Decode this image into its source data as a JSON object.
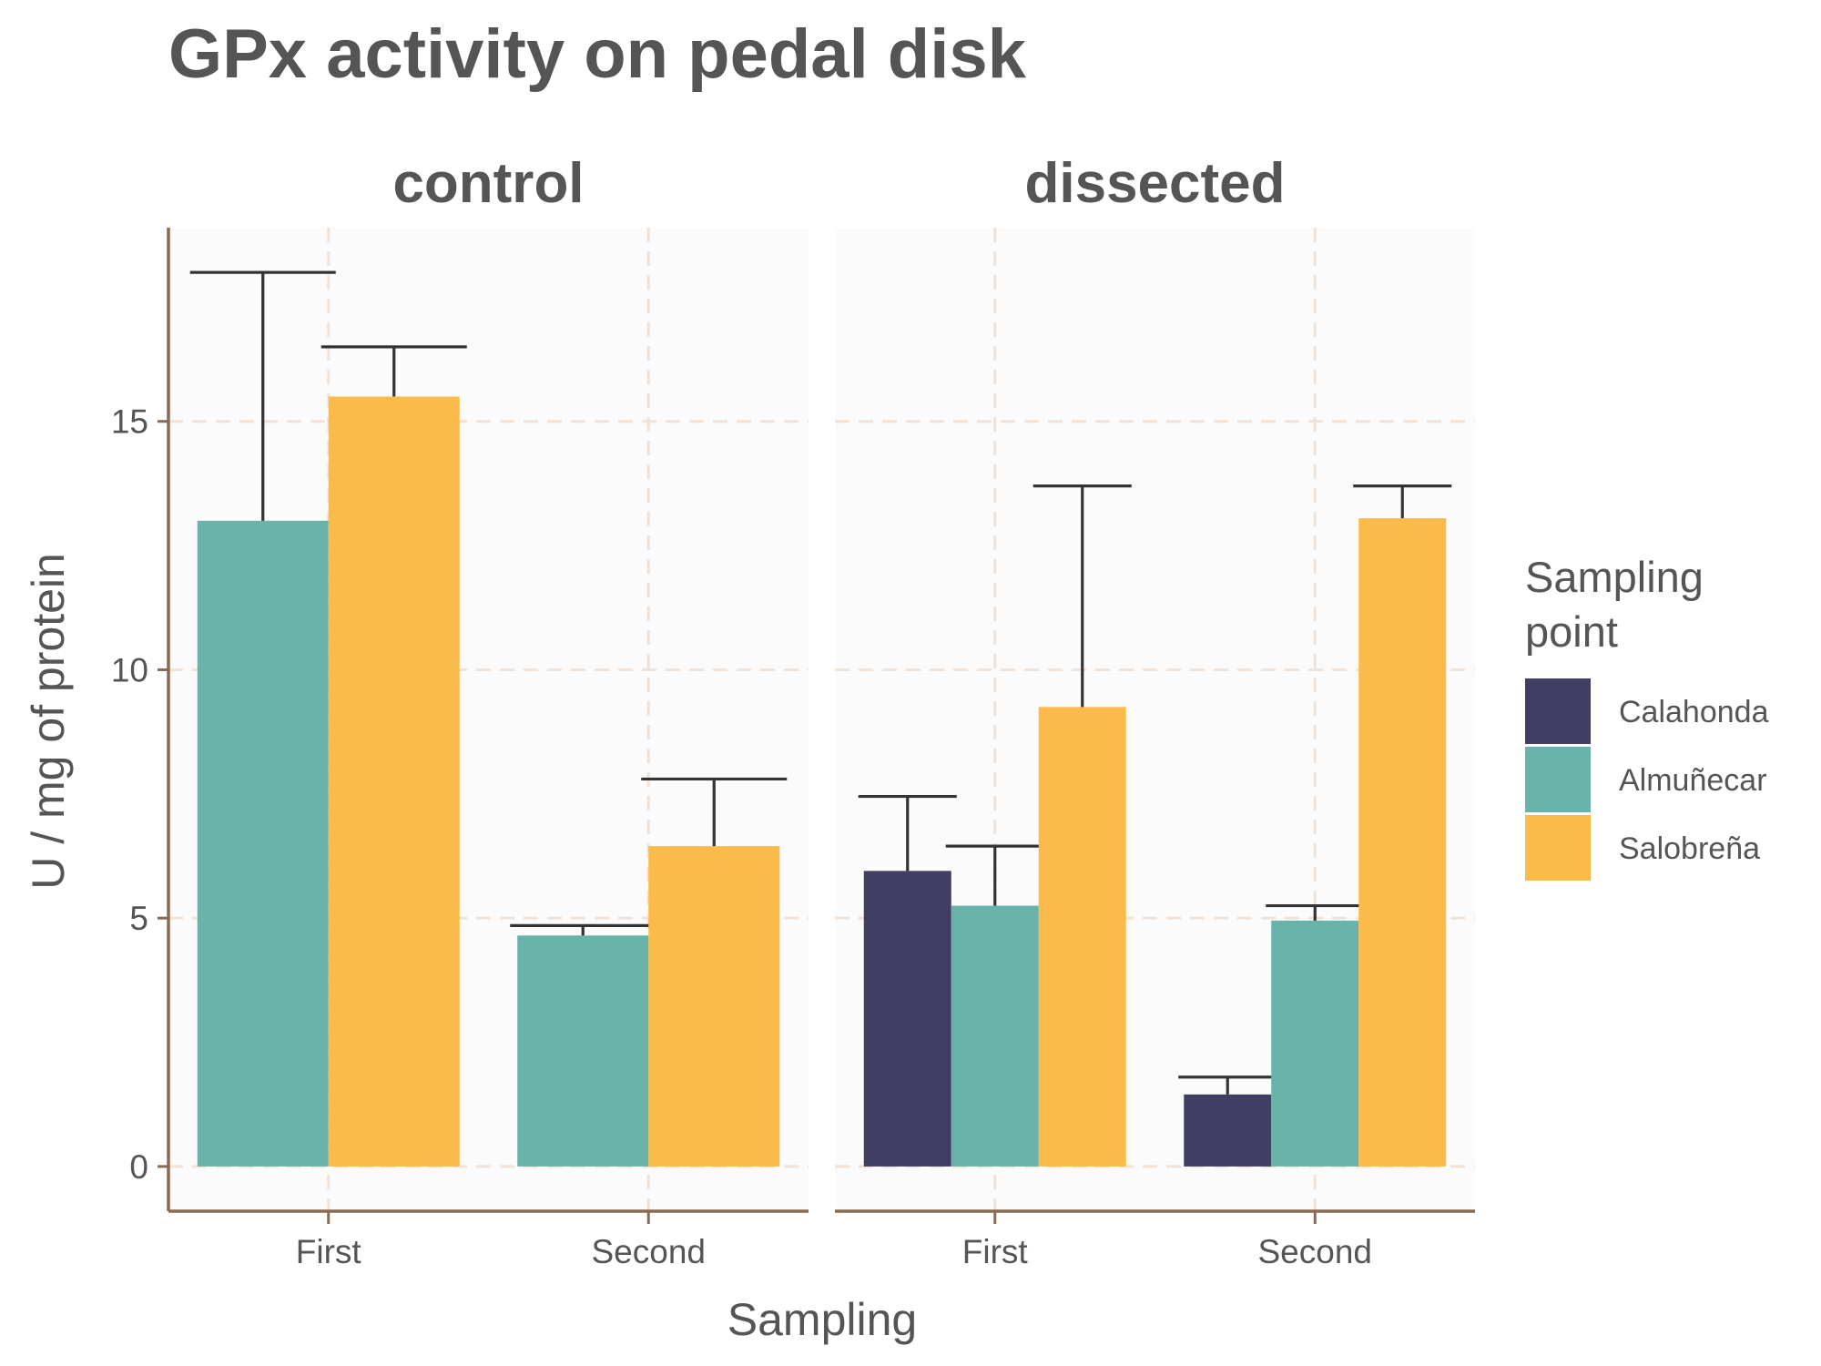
{
  "chart_data": {
    "type": "bar",
    "title": "GPx activity on pedal disk",
    "xlabel": "Sampling",
    "ylabel": "U / mg  of protein",
    "ylim": [
      -0.9,
      18.9
    ],
    "yticks": [
      0,
      5,
      10,
      15
    ],
    "grid": true,
    "legend": {
      "title_lines": [
        "Sampling",
        "point"
      ],
      "placement": "right"
    },
    "categories": [
      "First",
      "Second"
    ],
    "series_colors": {
      "Calahonda": "#403F63",
      "Almuñecar": "#69B3A9",
      "Salobreña": "#FBBB4A"
    },
    "series_order": [
      "Calahonda",
      "Almuñecar",
      "Salobreña"
    ],
    "panels": [
      {
        "name": "control",
        "groups": [
          {
            "category": "First",
            "bars": [
              {
                "series": "Almuñecar",
                "value": 13.0,
                "error": 18.0
              },
              {
                "series": "Salobreña",
                "value": 15.5,
                "error": 16.5
              }
            ]
          },
          {
            "category": "Second",
            "bars": [
              {
                "series": "Almuñecar",
                "value": 4.65,
                "error": 4.85
              },
              {
                "series": "Salobreña",
                "value": 6.45,
                "error": 7.8
              }
            ]
          }
        ]
      },
      {
        "name": "dissected",
        "groups": [
          {
            "category": "First",
            "bars": [
              {
                "series": "Calahonda",
                "value": 5.95,
                "error": 7.45
              },
              {
                "series": "Almuñecar",
                "value": 5.25,
                "error": 6.45
              },
              {
                "series": "Salobreña",
                "value": 9.25,
                "error": 13.7
              }
            ]
          },
          {
            "category": "Second",
            "bars": [
              {
                "series": "Calahonda",
                "value": 1.45,
                "error": 1.8
              },
              {
                "series": "Almuñecar",
                "value": 4.95,
                "error": 5.25
              },
              {
                "series": "Salobreña",
                "value": 13.05,
                "error": 13.7
              }
            ]
          }
        ]
      }
    ]
  }
}
